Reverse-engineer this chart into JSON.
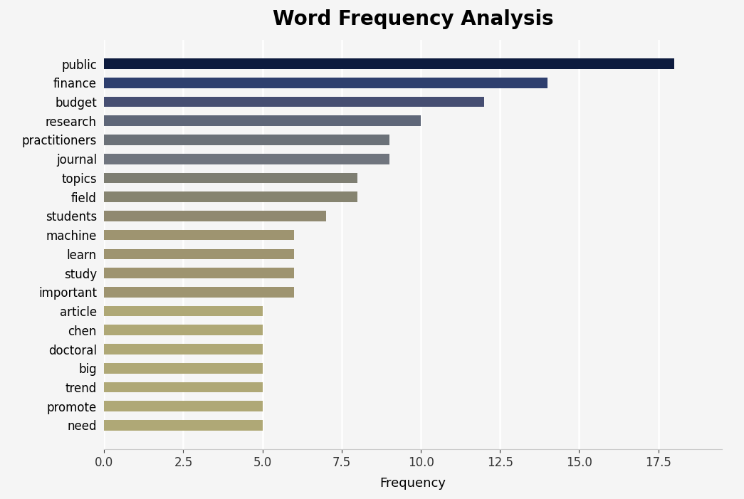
{
  "title": "Word Frequency Analysis",
  "categories": [
    "public",
    "finance",
    "budget",
    "research",
    "practitioners",
    "journal",
    "topics",
    "field",
    "students",
    "machine",
    "learn",
    "study",
    "important",
    "article",
    "chen",
    "doctoral",
    "big",
    "trend",
    "promote",
    "need"
  ],
  "values": [
    18.0,
    14.0,
    12.0,
    10.0,
    9.0,
    9.0,
    8.0,
    8.0,
    7.0,
    6.0,
    6.0,
    6.0,
    6.0,
    5.0,
    5.0,
    5.0,
    5.0,
    5.0,
    5.0,
    5.0
  ],
  "bar_colors": [
    "#0d1b3e",
    "#2e3f6e",
    "#464e72",
    "#5e6678",
    "#6b7178",
    "#70757e",
    "#7e7e72",
    "#868470",
    "#908970",
    "#9e9470",
    "#9e9470",
    "#9e9470",
    "#9e9470",
    "#afa876",
    "#afa876",
    "#afa876",
    "#afa876",
    "#afa876",
    "#afa876",
    "#afa876"
  ],
  "xlabel": "Frequency",
  "ylabel": "",
  "background_color": "#f5f5f5",
  "title_fontsize": 20,
  "axis_label_fontsize": 13,
  "tick_fontsize": 12,
  "bar_height": 0.55,
  "xlim": [
    0,
    19.5
  ],
  "xticks": [
    0.0,
    2.5,
    5.0,
    7.5,
    10.0,
    12.5,
    15.0,
    17.5
  ],
  "xtick_labels": [
    "0.0",
    "2.5",
    "5.0",
    "7.5",
    "10.0",
    "12.5",
    "15.0",
    "17.5"
  ]
}
